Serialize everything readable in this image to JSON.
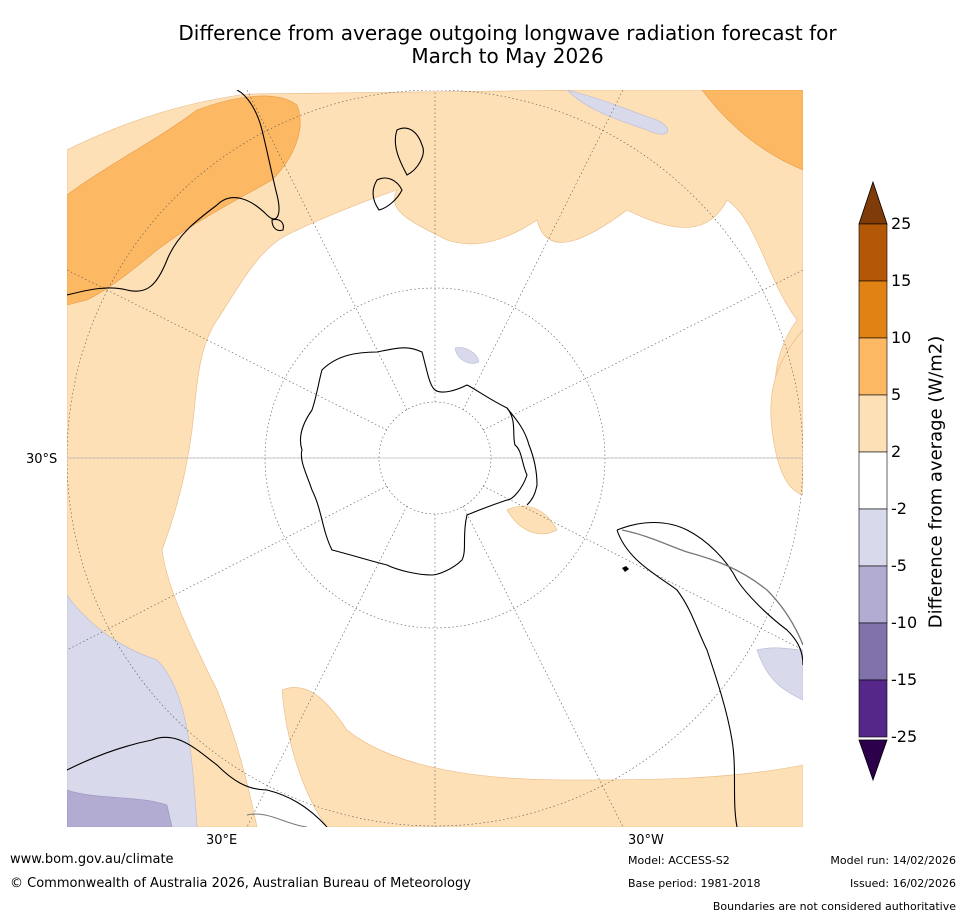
{
  "title_line1": "Difference from average outgoing longwave radiation forecast for",
  "title_line2": "March to May 2026",
  "map": {
    "lat_label": "30°S",
    "lon_label_left": "30°E",
    "lon_label_right": "30°W"
  },
  "colorbar": {
    "title": "Difference from average (W/m2)",
    "ticks": [
      "25",
      "15",
      "10",
      "5",
      "2",
      "-2",
      "-5",
      "-10",
      "-15",
      "-25"
    ],
    "bins": [
      {
        "range": "15 to 25",
        "color": "#b35806"
      },
      {
        "range": "10 to 15",
        "color": "#e08214"
      },
      {
        "range": "5 to 10",
        "color": "#fdb863"
      },
      {
        "range": "2 to 5",
        "color": "#fee0b6"
      },
      {
        "range": "-2 to 2",
        "color": "#ffffff"
      },
      {
        "range": "-5 to -2",
        "color": "#d8daeb"
      },
      {
        "range": "-10 to -5",
        "color": "#b2abd2"
      },
      {
        "range": "-15 to -10",
        "color": "#8073ac"
      },
      {
        "range": "-25 to -15",
        "color": "#542788"
      }
    ],
    "over_color": "#7f3b08",
    "under_color": "#2d004b"
  },
  "footer": {
    "website": "www.bom.gov.au/climate",
    "copyright": "© Commonwealth of Australia 2026, Australian Bureau of Meteorology",
    "model": "Model: ACCESS-S2",
    "base_period": "Base period: 1981-2018",
    "model_run": "Model run: 14/02/2026",
    "issued": "Issued: 16/02/2026",
    "disclaimer": "Boundaries are not considered authoritative"
  }
}
